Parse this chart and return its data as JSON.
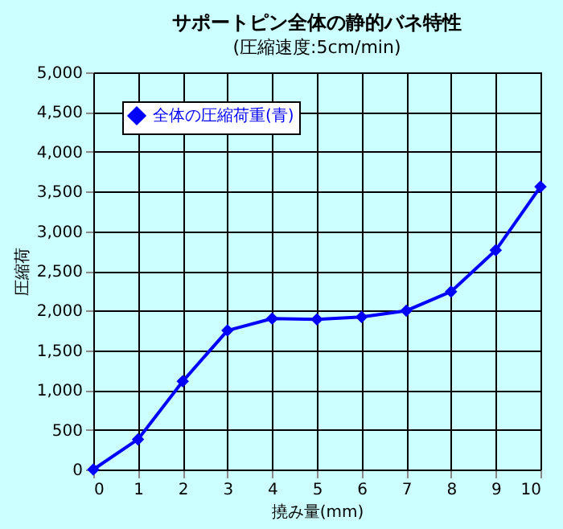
{
  "chart_data": {
    "type": "line",
    "title": "サポートピン全体の静的バネ特性",
    "subtitle": "(圧縮速度:5cm/min)",
    "xlabel": "撓み量(mm)",
    "ylabel": "圧縮荷",
    "x": [
      0,
      1,
      2,
      3,
      4,
      5,
      6,
      7,
      8,
      9,
      10
    ],
    "series": [
      {
        "name": "全体の圧縮荷重(青)",
        "color": "#0000ff",
        "values": [
          0,
          380,
          1110,
          1750,
          1900,
          1890,
          1920,
          2000,
          2240,
          2760,
          3560
        ]
      }
    ],
    "xlim": [
      0,
      10
    ],
    "xticks": [
      0,
      1,
      2,
      3,
      4,
      5,
      6,
      7,
      8,
      9,
      10
    ],
    "ylim": [
      0,
      5000
    ],
    "yticks": [
      0,
      {
        "value": 500,
        "label": "500"
      },
      {
        "value": 1000,
        "label": "1,000"
      },
      {
        "value": 1500,
        "label": "1,500"
      },
      {
        "value": 2000,
        "label": "2,000"
      },
      {
        "value": 2500,
        "label": "2,500"
      },
      {
        "value": 3000,
        "label": "3,000"
      },
      {
        "value": 3500,
        "label": "3,500"
      },
      {
        "value": 4000,
        "label": "4,000"
      },
      {
        "value": 4500,
        "label": "4,500"
      },
      {
        "value": 5000,
        "label": "5,000"
      }
    ],
    "grid": true,
    "legend": "top left",
    "marker": "diamond",
    "line_style": "solid"
  }
}
